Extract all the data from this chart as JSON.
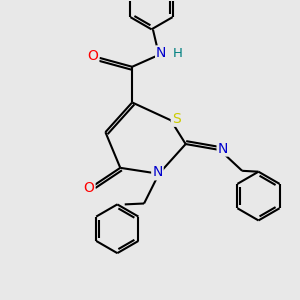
{
  "bg_color": "#e8e8e8",
  "atom_colors": {
    "C": "#000000",
    "N": "#0000cd",
    "O": "#ff0000",
    "S": "#cccc00",
    "H": "#008080"
  },
  "bond_color": "#000000",
  "bond_width": 1.5,
  "figsize": [
    3.0,
    3.0
  ],
  "dpi": 100,
  "xlim": [
    0,
    10
  ],
  "ylim": [
    0,
    10
  ]
}
